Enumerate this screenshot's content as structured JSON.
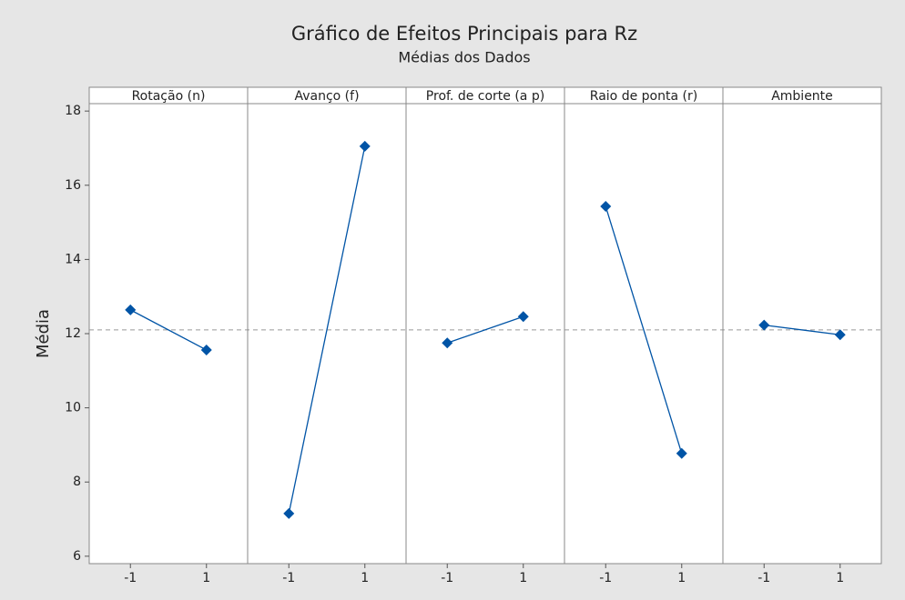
{
  "chart_data": {
    "type": "line",
    "title": "Gráfico de Efeitos Principais para Rz",
    "subtitle": "Médias dos Dados",
    "ylabel": "Média",
    "color": "#0054a6",
    "reference_line": 12.1,
    "ylim": [
      5.8,
      18.2
    ],
    "yticks": [
      6,
      8,
      10,
      12,
      14,
      16,
      18
    ],
    "panels": [
      {
        "name": "Rotação (n)",
        "categories": [
          "-1",
          "1"
        ],
        "values": [
          12.64,
          11.56
        ]
      },
      {
        "name": "Avanço (f)",
        "categories": [
          "-1",
          "1"
        ],
        "values": [
          7.15,
          17.05
        ]
      },
      {
        "name": "Prof. de corte (a p)",
        "categories": [
          "-1",
          "1"
        ],
        "values": [
          11.75,
          12.46
        ]
      },
      {
        "name": "Raio de ponta (r)",
        "categories": [
          "-1",
          "1"
        ],
        "values": [
          15.43,
          8.77
        ]
      },
      {
        "name": "Ambiente",
        "categories": [
          "-1",
          "1"
        ],
        "values": [
          12.23,
          11.97
        ]
      }
    ]
  }
}
